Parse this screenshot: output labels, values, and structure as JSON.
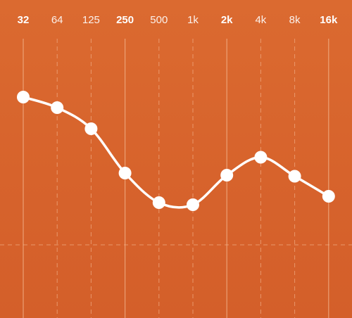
{
  "equalizer": {
    "bands": [
      {
        "label": "32",
        "emphasis": true,
        "gain_db": 6.0
      },
      {
        "label": "64",
        "emphasis": false,
        "gain_db": 5.0
      },
      {
        "label": "125",
        "emphasis": false,
        "gain_db": 3.0
      },
      {
        "label": "250",
        "emphasis": true,
        "gain_db": -1.2
      },
      {
        "label": "500",
        "emphasis": false,
        "gain_db": -4.0
      },
      {
        "label": "1k",
        "emphasis": false,
        "gain_db": -4.2
      },
      {
        "label": "2k",
        "emphasis": true,
        "gain_db": -1.4
      },
      {
        "label": "4k",
        "emphasis": false,
        "gain_db": 0.3
      },
      {
        "label": "8k",
        "emphasis": false,
        "gain_db": -1.5
      },
      {
        "label": "16k",
        "emphasis": true,
        "gain_db": -3.4
      }
    ],
    "zero_line_db": -8.0,
    "gain_range_db": [
      -15,
      15
    ],
    "colors": {
      "background": "#d9662e",
      "curve": "#ffffff",
      "grid": "#f2b48d",
      "handle": "#ffffff"
    }
  }
}
